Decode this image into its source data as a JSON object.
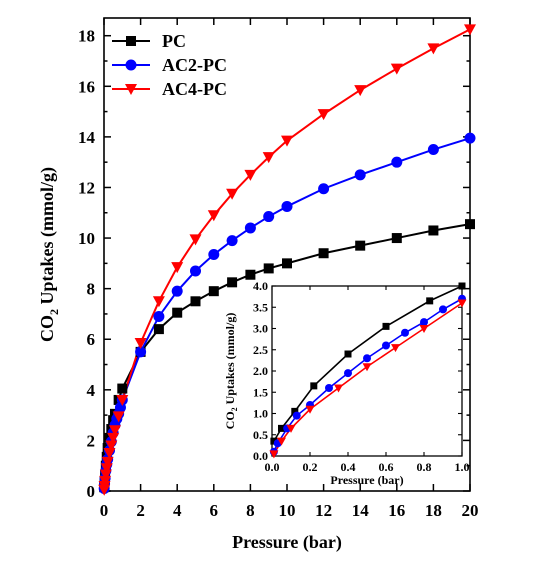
{
  "chart_data": [
    {
      "type": "line",
      "panel": "main",
      "xlabel": "Pressure (bar)",
      "ylabel_main": "CO",
      "ylabel_sub": "2",
      "ylabel_rest": " Uptakes (mmol/g)",
      "xlim": [
        0,
        20
      ],
      "ylim": [
        0,
        18.7
      ],
      "xticks": [
        0,
        2,
        4,
        6,
        8,
        10,
        12,
        14,
        16,
        18,
        20
      ],
      "yticks": [
        0,
        2,
        4,
        6,
        8,
        10,
        12,
        14,
        16,
        18
      ],
      "legend_placement": "top-left",
      "grid": false,
      "series": [
        {
          "name": "PC",
          "color": "#000000",
          "marker": "square",
          "x": [
            0.01,
            0.03,
            0.06,
            0.1,
            0.15,
            0.2,
            0.3,
            0.4,
            0.5,
            0.6,
            0.8,
            1.0,
            2,
            3,
            4,
            5,
            6,
            7,
            8,
            9,
            10,
            12,
            14,
            16,
            18,
            20
          ],
          "y": [
            0.15,
            0.35,
            0.65,
            1.0,
            1.35,
            1.7,
            2.1,
            2.45,
            2.8,
            3.05,
            3.6,
            4.05,
            5.5,
            6.4,
            7.05,
            7.5,
            7.9,
            8.25,
            8.55,
            8.8,
            9.0,
            9.4,
            9.7,
            10.0,
            10.3,
            10.55
          ]
        },
        {
          "name": "AC2-PC",
          "color": "#0000ff",
          "marker": "circle",
          "x": [
            0.01,
            0.03,
            0.06,
            0.1,
            0.15,
            0.2,
            0.3,
            0.4,
            0.5,
            0.6,
            0.7,
            0.8,
            0.9,
            1.0,
            2,
            3,
            4,
            5,
            6,
            7,
            8,
            9,
            10,
            12,
            14,
            16,
            18,
            20
          ],
          "y": [
            0.1,
            0.3,
            0.5,
            0.8,
            1.05,
            1.25,
            1.6,
            1.95,
            2.3,
            2.6,
            2.85,
            3.05,
            3.3,
            3.6,
            5.5,
            6.9,
            7.9,
            8.7,
            9.35,
            9.9,
            10.4,
            10.85,
            11.25,
            11.95,
            12.5,
            13.0,
            13.5,
            13.95
          ]
        },
        {
          "name": "AC4-PC",
          "color": "#ff0000",
          "marker": "triangle-down",
          "x": [
            0.01,
            0.03,
            0.06,
            0.1,
            0.15,
            0.2,
            0.3,
            0.4,
            0.5,
            0.6,
            0.8,
            1.0,
            2,
            3,
            4,
            5,
            6,
            7,
            8,
            9,
            10,
            12,
            14,
            16,
            18,
            20
          ],
          "y": [
            0.05,
            0.2,
            0.4,
            0.65,
            0.9,
            1.15,
            1.5,
            1.8,
            2.1,
            2.4,
            2.95,
            3.6,
            5.85,
            7.5,
            8.85,
            9.95,
            10.9,
            11.75,
            12.5,
            13.2,
            13.85,
            14.9,
            15.85,
            16.7,
            17.5,
            18.25
          ]
        }
      ]
    },
    {
      "type": "line",
      "panel": "inset",
      "xlabel": "Pressure (bar)",
      "ylabel_main": "CO",
      "ylabel_sub": "2",
      "ylabel_rest": " Uptakes (mmol/g)",
      "xlim": [
        0,
        1.0
      ],
      "ylim": [
        0,
        4.0
      ],
      "xticks": [
        0.0,
        0.2,
        0.4,
        0.6,
        0.8,
        1.0
      ],
      "xtick_labels": [
        "0.0",
        "0.2",
        "0.4",
        "0.6",
        "0.8",
        "1.0"
      ],
      "yticks": [
        0.0,
        0.5,
        1.0,
        1.5,
        2.0,
        2.5,
        3.0,
        3.5,
        4.0
      ],
      "ytick_labels": [
        "0.0",
        "0.5",
        "1.0",
        "1.5",
        "2.0",
        "2.5",
        "3.0",
        "3.5",
        "4.0"
      ],
      "grid": false,
      "series": [
        {
          "name": "PC",
          "color": "#000000",
          "marker": "square",
          "x": [
            0.01,
            0.05,
            0.12,
            0.22,
            0.4,
            0.6,
            0.83,
            1.0
          ],
          "y": [
            0.35,
            0.65,
            1.05,
            1.65,
            2.4,
            3.05,
            3.65,
            4.0
          ]
        },
        {
          "name": "AC2-PC",
          "color": "#0000ff",
          "marker": "circle",
          "x": [
            0.01,
            0.03,
            0.08,
            0.13,
            0.2,
            0.3,
            0.4,
            0.5,
            0.6,
            0.7,
            0.8,
            0.9,
            1.0
          ],
          "y": [
            0.1,
            0.3,
            0.65,
            0.95,
            1.2,
            1.6,
            1.95,
            2.3,
            2.6,
            2.9,
            3.15,
            3.45,
            3.7
          ]
        },
        {
          "name": "AC4-PC",
          "color": "#ff0000",
          "marker": "triangle-down",
          "x": [
            0.01,
            0.05,
            0.1,
            0.2,
            0.35,
            0.5,
            0.65,
            0.8,
            1.0
          ],
          "y": [
            0.05,
            0.35,
            0.65,
            1.1,
            1.6,
            2.1,
            2.55,
            3.0,
            3.6
          ]
        }
      ]
    }
  ]
}
